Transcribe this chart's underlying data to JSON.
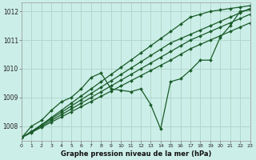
{
  "xlabel": "Graphe pression niveau de la mer (hPa)",
  "bg_color": "#cceee8",
  "grid_color": "#b0d8cc",
  "line_color": "#1a5c2a",
  "ylim": [
    1007.5,
    1012.3
  ],
  "xlim": [
    0,
    23
  ],
  "yticks": [
    1008,
    1009,
    1010,
    1011,
    1012
  ],
  "xticks": [
    0,
    1,
    2,
    3,
    4,
    5,
    6,
    7,
    8,
    9,
    10,
    11,
    12,
    13,
    14,
    15,
    16,
    17,
    18,
    19,
    20,
    21,
    22,
    23
  ],
  "series": [
    [
      1007.6,
      1007.8,
      1008.05,
      1008.3,
      1008.55,
      1008.8,
      1009.05,
      1009.3,
      1009.55,
      1009.8,
      1010.05,
      1010.3,
      1010.55,
      1010.8,
      1011.05,
      1011.3,
      1011.55,
      1011.8,
      1011.9,
      1012.0,
      1012.05,
      1012.1,
      1012.15,
      1012.2
    ],
    [
      1007.6,
      1007.82,
      1008.04,
      1008.26,
      1008.48,
      1008.7,
      1008.92,
      1009.14,
      1009.36,
      1009.58,
      1009.8,
      1010.02,
      1010.24,
      1010.46,
      1010.68,
      1010.9,
      1011.05,
      1011.2,
      1011.35,
      1011.5,
      1011.65,
      1011.8,
      1011.95,
      1012.1
    ],
    [
      1007.6,
      1007.8,
      1008.0,
      1008.2,
      1008.4,
      1008.6,
      1008.8,
      1009.0,
      1009.2,
      1009.4,
      1009.6,
      1009.8,
      1010.0,
      1010.2,
      1010.4,
      1010.6,
      1010.8,
      1011.0,
      1011.15,
      1011.3,
      1011.45,
      1011.6,
      1011.75,
      1011.9
    ],
    [
      1007.6,
      1007.78,
      1007.96,
      1008.14,
      1008.32,
      1008.5,
      1008.68,
      1008.86,
      1009.04,
      1009.22,
      1009.4,
      1009.58,
      1009.76,
      1009.94,
      1010.12,
      1010.3,
      1010.5,
      1010.7,
      1010.85,
      1011.0,
      1011.15,
      1011.3,
      1011.45,
      1011.6
    ],
    [
      1007.6,
      1008.0,
      1008.2,
      1008.55,
      1008.85,
      1009.0,
      1009.3,
      1009.7,
      1009.85,
      1009.3,
      1009.25,
      1009.2,
      1009.3,
      1008.75,
      1007.9,
      1009.55,
      1009.65,
      1009.95,
      1010.3,
      1010.3,
      1011.1,
      1011.5,
      1012.0,
      1012.05
    ]
  ],
  "marker": "D",
  "markersize": 2.0,
  "linewidth": 0.9
}
